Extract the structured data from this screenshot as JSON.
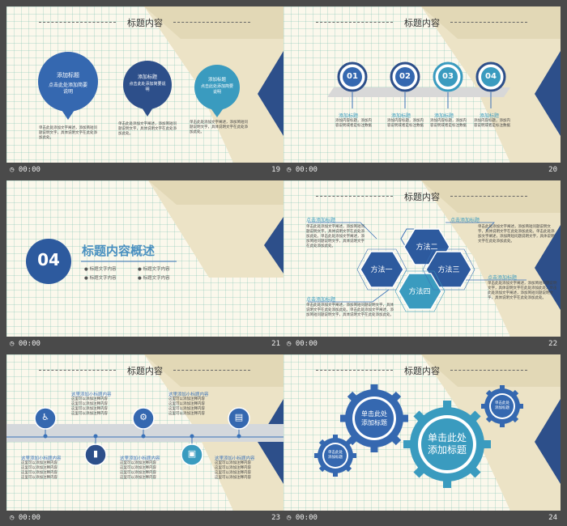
{
  "footer_time": "00:00",
  "slides": [
    {
      "num": "19",
      "title": "标题内容",
      "bubbles": [
        {
          "title": "添加标题",
          "sub": "点击此处添加简要说明",
          "desc": "单击此处添加文字阐述，添加简短问题说明文字，具体说明文字在此处添加此处。"
        },
        {
          "title": "添加标题",
          "sub": "点击此处添加简要说明",
          "desc": "单击此处添加文字阐述，添加简短问题说明文字，具体说明文字在此处添加此处。"
        },
        {
          "title": "添加标题",
          "sub": "点击此处添加简要说明",
          "desc": "单击此处添加文字阐述，添加简短问题说明文字，具体说明文字在此处添加此处。"
        }
      ]
    },
    {
      "num": "20",
      "title": "标题内容",
      "steps": [
        {
          "n": "01",
          "label": "添加标题",
          "desc": "添加内容标题，添加内容说明或者是标注数据"
        },
        {
          "n": "02",
          "label": "添加标题",
          "desc": "添加内容标题，添加内容说明或者是标注数据"
        },
        {
          "n": "03",
          "label": "添加标题",
          "desc": "添加内容标题，添加内容说明或者是标注数据"
        },
        {
          "n": "04",
          "label": "添加标题",
          "desc": "添加内容标题，添加内容说明或者是标注数据"
        }
      ]
    },
    {
      "num": "21",
      "badge": "04",
      "heading": "标题内容概述",
      "bullets": [
        "标题文字内容",
        "标题文字内容",
        "标题文字内容",
        "标题文字内容"
      ]
    },
    {
      "num": "22",
      "title": "标题内容",
      "hexes": [
        "方法一",
        "方法二",
        "方法三",
        "方法四"
      ],
      "labels": [
        "点击添加标题",
        "点击添加标题",
        "点击添加标题",
        "点击添加标题"
      ],
      "desc": "单击此处添加文字阐述，添加简短问题说明文字，具体说明文字在此处添加此处。单击此处添加文字阐述，添加简短问题说明文字，具体说明文字在此处添加此处。"
    },
    {
      "num": "23",
      "title": "标题内容",
      "items": [
        {
          "title": "这里添加小标题内容",
          "lines": [
            "这里可以添加注释内容",
            "这里可以添加注释内容",
            "这里可以添加注释内容",
            "这里可以添加注释内容"
          ]
        },
        {
          "title": "这里添加小标题内容",
          "lines": [
            "这里可以添加注释内容",
            "这里可以添加注释内容",
            "这里可以添加注释内容",
            "这里可以添加注释内容"
          ]
        },
        {
          "title": "这里添加小标题内容",
          "lines": [
            "这里可以添加注释内容",
            "这里可以添加注释内容",
            "这里可以添加注释内容",
            "这里可以添加注释内容"
          ]
        },
        {
          "title": "这里添加小标题内容",
          "lines": [
            "这里可以添加注释内容",
            "这里可以添加注释内容",
            "这里可以添加注释内容",
            "这里可以添加注释内容"
          ]
        },
        {
          "title": "这里添加小标题内容",
          "lines": [
            "这里可以添加注释内容",
            "这里可以添加注释内容",
            "这里可以添加注释内容",
            "这里可以添加注释内容"
          ]
        }
      ]
    },
    {
      "num": "24",
      "title": "标题内容",
      "gears": [
        {
          "l1": "单击此处",
          "l2": "添加标题"
        },
        {
          "l1": "单击此处",
          "l2": "添加标题"
        },
        {
          "l1": "单击此处",
          "l2": "添加标题"
        },
        {
          "l1": "单击此处",
          "l2": "添加标题"
        }
      ]
    }
  ],
  "colors": {
    "navy": "#2d4f8a",
    "blue": "#3a72b8",
    "teal": "#3a9bbf"
  }
}
